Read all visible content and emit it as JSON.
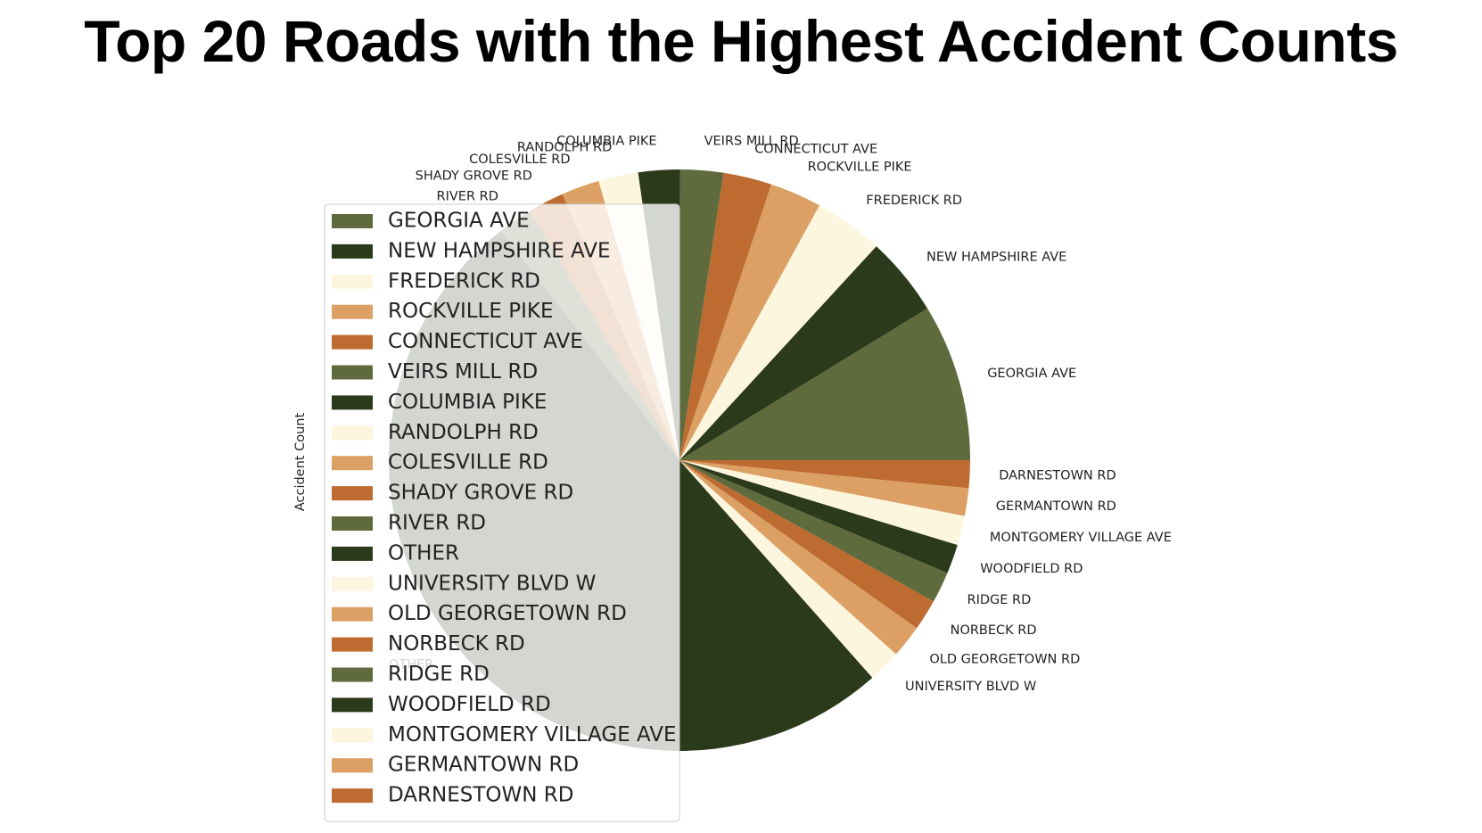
{
  "chart_data": {
    "type": "pie",
    "title": "Top 20 Roads with the Highest Accident Counts",
    "ylabel": "Accident Count",
    "legend_position": "left",
    "slices": [
      {
        "label": "GEORGIA AVE",
        "value": 91
      },
      {
        "label": "NEW HAMPSHIRE AVE",
        "value": 46
      },
      {
        "label": "FREDERICK RD",
        "value": 40
      },
      {
        "label": "ROCKVILLE PIKE",
        "value": 30
      },
      {
        "label": "CONNECTICUT AVE",
        "value": 28
      },
      {
        "label": "VEIRS MILL RD",
        "value": 25
      },
      {
        "label": "COLUMBIA PIKE",
        "value": 24
      },
      {
        "label": "RANDOLPH RD",
        "value": 23
      },
      {
        "label": "COLESVILLE RD",
        "value": 22
      },
      {
        "label": "SHADY GROVE RD",
        "value": 21
      },
      {
        "label": "RIVER RD",
        "value": 20
      },
      {
        "label": "OTHER",
        "value": 531
      },
      {
        "label": "UNIVERSITY BLVD W",
        "value": 19
      },
      {
        "label": "OLD GEORGETOWN RD",
        "value": 19
      },
      {
        "label": "NORBECK RD",
        "value": 18
      },
      {
        "label": "RIDGE RD",
        "value": 18
      },
      {
        "label": "WOODFIELD RD",
        "value": 17
      },
      {
        "label": "MONTGOMERY VILLAGE AVE",
        "value": 17
      },
      {
        "label": "GERMANTOWN RD",
        "value": 16
      },
      {
        "label": "DARNESTOWN RD",
        "value": 16
      }
    ],
    "colors": [
      "#5f6b3c",
      "#2c3a1c",
      "#fdf6de",
      "#dca064",
      "#bd6b31"
    ]
  }
}
